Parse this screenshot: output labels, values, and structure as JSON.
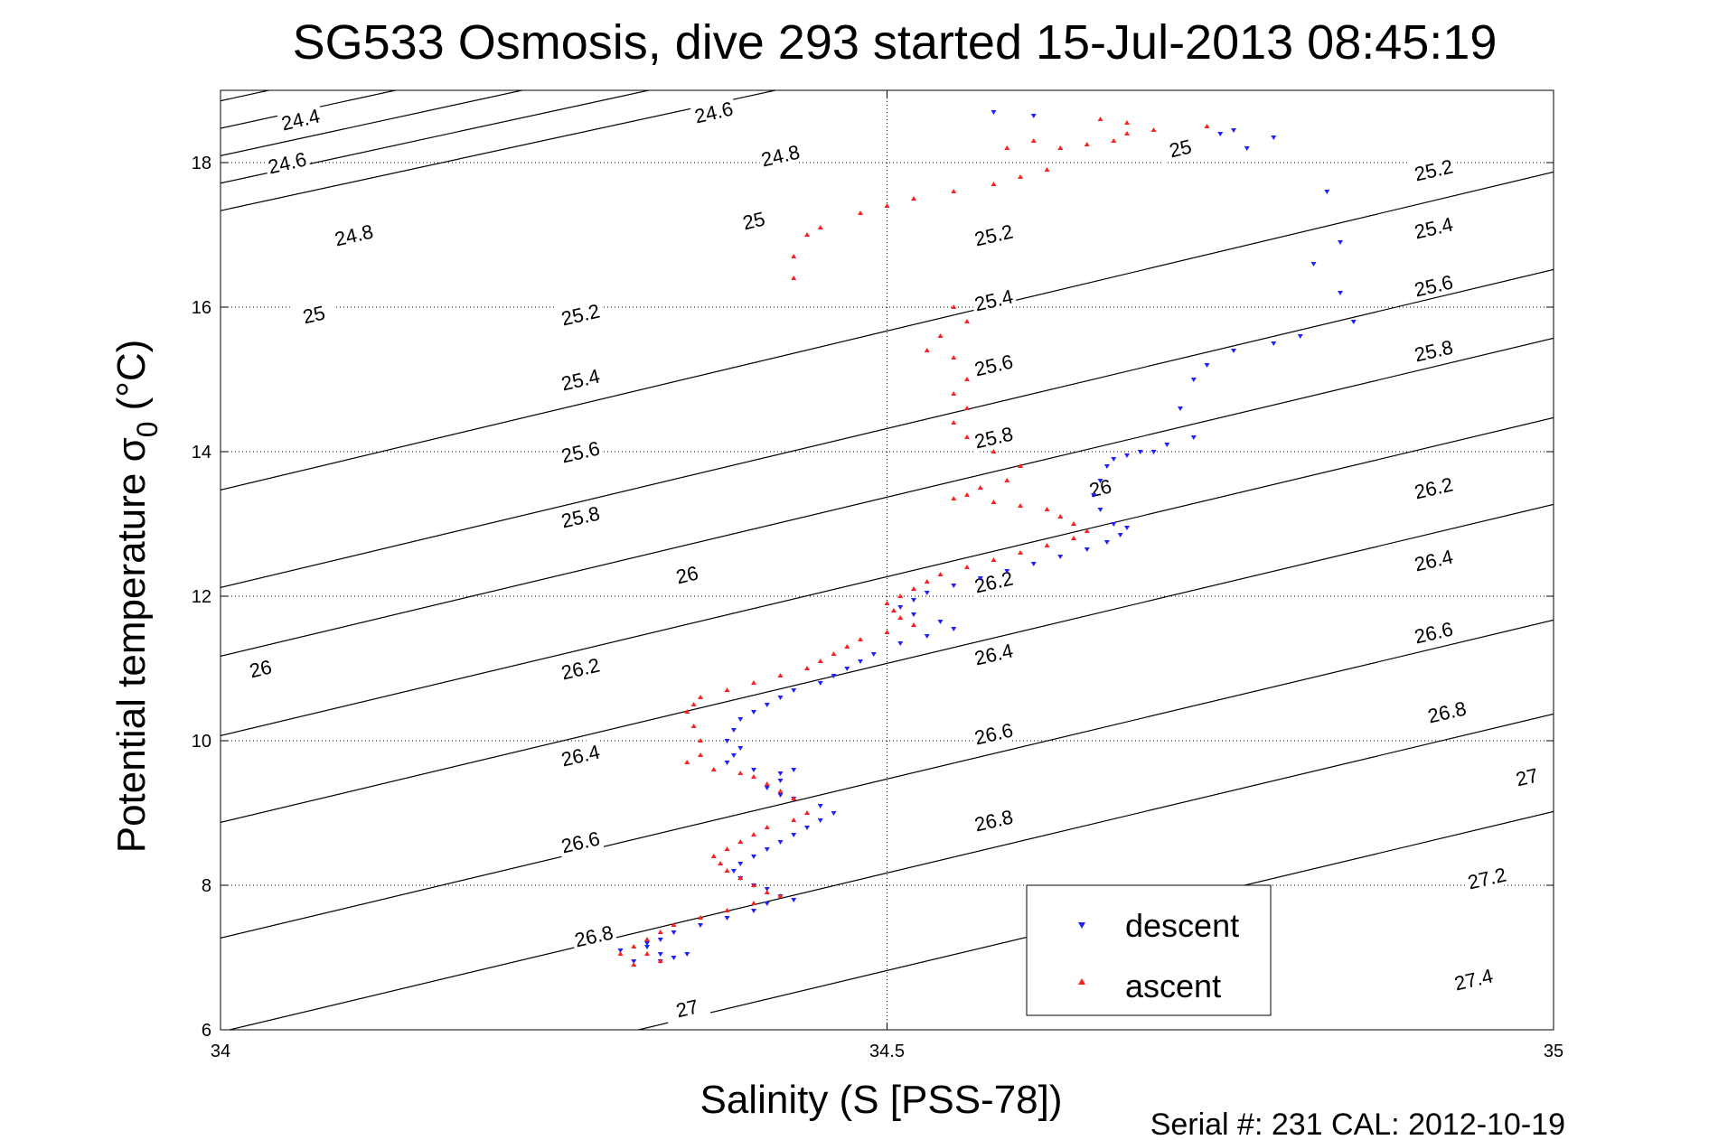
{
  "chart_data": {
    "type": "scatter",
    "title": "SG533 Osmosis, dive 293 started 15-Jul-2013 08:45:19",
    "xlabel": "Salinity (S [PSS-78])",
    "ylabel_main": "Potential temperature σ",
    "ylabel_sub": "0",
    "ylabel_unit": "(°C)",
    "xlim": [
      34,
      35
    ],
    "ylim": [
      6,
      19
    ],
    "xticks": [
      34,
      34.5,
      35
    ],
    "xtick_labels": [
      "34",
      "34.5",
      "35"
    ],
    "yticks": [
      6,
      8,
      10,
      12,
      14,
      16,
      18
    ],
    "ytick_labels": [
      "6",
      "8",
      "10",
      "12",
      "14",
      "16",
      "18"
    ],
    "grid": true,
    "legend_position": "bottom-center",
    "colors": {
      "descent": "#1f1fff",
      "ascent": "#ff1f1f",
      "contour": "#000000"
    },
    "isopycnals": [
      {
        "value": 24.4,
        "label": "24.4",
        "x0": 33.7,
        "y0": 18.795,
        "slope": 4.0
      },
      {
        "value": 24.6,
        "label": "24.6",
        "x0": 33.7,
        "y0": 18.415,
        "slope": 4.0
      },
      {
        "value": 24.8,
        "label": "24.8",
        "x0": 33.7,
        "y0": 18.035,
        "slope": 4.0
      },
      {
        "value": 25.0,
        "label": "25",
        "x0": 33.7,
        "y0": 17.655,
        "slope": 4.0
      },
      {
        "value": 25.2,
        "label": "25.2",
        "x0": 33.7,
        "y0": 17.275,
        "slope": 4.0
      },
      {
        "value": 25.4,
        "label": "25.4",
        "x0": 33.7,
        "y0": 16.895,
        "slope": 4.0
      },
      {
        "value": 25.6,
        "label": "25.6",
        "x0": 33.7,
        "y0": 16.515,
        "slope": 4.0
      },
      {
        "value": 25.8,
        "label": "25.8",
        "x0": 33.7,
        "y0": 16.135,
        "slope": 4.0
      },
      {
        "value": 26.0,
        "label": "26",
        "x0": 33.7,
        "y0": 12.15,
        "slope": 4.4
      },
      {
        "value": 26.2,
        "label": "26.2",
        "x0": 33.7,
        "y0": 10.8,
        "slope": 4.4
      },
      {
        "value": 26.4,
        "label": "26.4",
        "x0": 33.7,
        "y0": 9.85,
        "slope": 4.4
      },
      {
        "value": 26.6,
        "label": "26.6",
        "x0": 33.7,
        "y0": 8.75,
        "slope": 4.4
      },
      {
        "value": 26.8,
        "label": "26.8",
        "x0": 33.7,
        "y0": 7.55,
        "slope": 4.4
      },
      {
        "value": 27.0,
        "label": "27",
        "x0": 33.7,
        "y0": 5.95,
        "slope": 4.4
      },
      {
        "value": 27.2,
        "label": "27.2",
        "x0": 33.7,
        "y0": 4.65,
        "slope": 4.4
      },
      {
        "value": 27.4,
        "label": "27.4",
        "x0": 33.7,
        "y0": 3.3,
        "slope": 4.4
      }
    ],
    "contour_labels": [
      {
        "text": "24.4",
        "x": 34.06,
        "y": 18.6
      },
      {
        "text": "24.6",
        "x": 34.05,
        "y": 18.0
      },
      {
        "text": "24.8",
        "x": 34.1,
        "y": 17.0
      },
      {
        "text": "25",
        "x": 34.07,
        "y": 15.9
      },
      {
        "text": "26",
        "x": 34.03,
        "y": 11.0
      },
      {
        "text": "24.6",
        "x": 34.37,
        "y": 18.7
      },
      {
        "text": "24.8",
        "x": 34.42,
        "y": 18.1
      },
      {
        "text": "25",
        "x": 34.4,
        "y": 17.2
      },
      {
        "text": "25.2",
        "x": 34.27,
        "y": 15.9
      },
      {
        "text": "25.4",
        "x": 34.27,
        "y": 15.0
      },
      {
        "text": "25.6",
        "x": 34.27,
        "y": 14.0
      },
      {
        "text": "25.8",
        "x": 34.27,
        "y": 13.1
      },
      {
        "text": "26",
        "x": 34.35,
        "y": 12.3
      },
      {
        "text": "26.2",
        "x": 34.27,
        "y": 11.0
      },
      {
        "text": "26.4",
        "x": 34.27,
        "y": 9.8
      },
      {
        "text": "26.6",
        "x": 34.27,
        "y": 8.6
      },
      {
        "text": "26.8",
        "x": 34.28,
        "y": 7.3
      },
      {
        "text": "27",
        "x": 34.35,
        "y": 6.3
      },
      {
        "text": "25",
        "x": 34.72,
        "y": 18.2
      },
      {
        "text": "25.2",
        "x": 34.58,
        "y": 17.0
      },
      {
        "text": "25.4",
        "x": 34.58,
        "y": 16.1
      },
      {
        "text": "25.6",
        "x": 34.58,
        "y": 15.2
      },
      {
        "text": "25.8",
        "x": 34.58,
        "y": 14.2
      },
      {
        "text": "26",
        "x": 34.66,
        "y": 13.5
      },
      {
        "text": "26.2",
        "x": 34.58,
        "y": 12.2
      },
      {
        "text": "26.4",
        "x": 34.58,
        "y": 11.2
      },
      {
        "text": "26.6",
        "x": 34.58,
        "y": 10.1
      },
      {
        "text": "26.8",
        "x": 34.58,
        "y": 8.9
      },
      {
        "text": "25.2",
        "x": 34.91,
        "y": 17.9
      },
      {
        "text": "25.4",
        "x": 34.91,
        "y": 17.1
      },
      {
        "text": "25.6",
        "x": 34.91,
        "y": 16.3
      },
      {
        "text": "25.8",
        "x": 34.91,
        "y": 15.4
      },
      {
        "text": "26.2",
        "x": 34.91,
        "y": 13.5
      },
      {
        "text": "26.4",
        "x": 34.91,
        "y": 12.5
      },
      {
        "text": "26.6",
        "x": 34.91,
        "y": 11.5
      },
      {
        "text": "26.8",
        "x": 34.92,
        "y": 10.4
      },
      {
        "text": "27",
        "x": 34.98,
        "y": 9.5
      },
      {
        "text": "27.2",
        "x": 34.95,
        "y": 8.1
      },
      {
        "text": "27.4",
        "x": 34.94,
        "y": 6.7
      }
    ],
    "series": [
      {
        "name": "descent",
        "marker": "triangle-down",
        "points": [
          [
            34.58,
            18.7
          ],
          [
            34.61,
            18.65
          ],
          [
            34.75,
            18.4
          ],
          [
            34.76,
            18.45
          ],
          [
            34.79,
            18.35
          ],
          [
            34.77,
            18.2
          ],
          [
            34.83,
            17.6
          ],
          [
            34.84,
            16.9
          ],
          [
            34.82,
            16.6
          ],
          [
            34.84,
            16.2
          ],
          [
            34.85,
            15.8
          ],
          [
            34.81,
            15.6
          ],
          [
            34.79,
            15.5
          ],
          [
            34.76,
            15.4
          ],
          [
            34.74,
            15.2
          ],
          [
            34.73,
            15.0
          ],
          [
            34.72,
            14.6
          ],
          [
            34.73,
            14.2
          ],
          [
            34.71,
            14.1
          ],
          [
            34.7,
            14.0
          ],
          [
            34.69,
            14.0
          ],
          [
            34.68,
            13.95
          ],
          [
            34.67,
            13.9
          ],
          [
            34.665,
            13.8
          ],
          [
            34.66,
            13.6
          ],
          [
            34.655,
            13.4
          ],
          [
            34.66,
            13.2
          ],
          [
            34.67,
            13.0
          ],
          [
            34.68,
            12.95
          ],
          [
            34.675,
            12.85
          ],
          [
            34.665,
            12.75
          ],
          [
            34.65,
            12.65
          ],
          [
            34.63,
            12.55
          ],
          [
            34.61,
            12.45
          ],
          [
            34.59,
            12.35
          ],
          [
            34.57,
            12.25
          ],
          [
            34.55,
            12.15
          ],
          [
            34.53,
            12.05
          ],
          [
            34.52,
            11.95
          ],
          [
            34.51,
            11.85
          ],
          [
            34.52,
            11.75
          ],
          [
            34.54,
            11.65
          ],
          [
            34.55,
            11.55
          ],
          [
            34.53,
            11.45
          ],
          [
            34.51,
            11.35
          ],
          [
            34.49,
            11.2
          ],
          [
            34.48,
            11.1
          ],
          [
            34.47,
            11.0
          ],
          [
            34.46,
            10.9
          ],
          [
            34.45,
            10.8
          ],
          [
            34.43,
            10.7
          ],
          [
            34.42,
            10.6
          ],
          [
            34.41,
            10.5
          ],
          [
            34.4,
            10.4
          ],
          [
            34.39,
            10.3
          ],
          [
            34.385,
            10.15
          ],
          [
            34.38,
            10.0
          ],
          [
            34.39,
            9.9
          ],
          [
            34.385,
            9.8
          ],
          [
            34.38,
            9.7
          ],
          [
            34.4,
            9.6
          ],
          [
            34.42,
            9.55
          ],
          [
            34.43,
            9.6
          ],
          [
            34.42,
            9.45
          ],
          [
            34.41,
            9.35
          ],
          [
            34.42,
            9.25
          ],
          [
            34.43,
            9.2
          ],
          [
            34.45,
            9.1
          ],
          [
            34.46,
            9.0
          ],
          [
            34.45,
            8.9
          ],
          [
            34.44,
            8.8
          ],
          [
            34.43,
            8.7
          ],
          [
            34.42,
            8.6
          ],
          [
            34.41,
            8.5
          ],
          [
            34.4,
            8.4
          ],
          [
            34.39,
            8.3
          ],
          [
            34.385,
            8.2
          ],
          [
            34.39,
            8.1
          ],
          [
            34.4,
            8.0
          ],
          [
            34.41,
            7.95
          ],
          [
            34.42,
            7.85
          ],
          [
            34.43,
            7.8
          ],
          [
            34.41,
            7.75
          ],
          [
            34.4,
            7.65
          ],
          [
            34.38,
            7.55
          ],
          [
            34.36,
            7.45
          ],
          [
            34.34,
            7.35
          ],
          [
            34.33,
            7.25
          ],
          [
            34.32,
            7.15
          ],
          [
            34.33,
            7.05
          ],
          [
            34.34,
            7.0
          ],
          [
            34.35,
            7.05
          ],
          [
            34.33,
            6.95
          ],
          [
            34.31,
            6.95
          ],
          [
            34.3,
            7.1
          ],
          [
            34.32,
            7.2
          ]
        ]
      },
      {
        "name": "ascent",
        "marker": "triangle-up",
        "points": [
          [
            34.43,
            16.4
          ],
          [
            34.43,
            16.7
          ],
          [
            34.44,
            17.0
          ],
          [
            34.45,
            17.1
          ],
          [
            34.48,
            17.3
          ],
          [
            34.5,
            17.4
          ],
          [
            34.52,
            17.5
          ],
          [
            34.55,
            17.6
          ],
          [
            34.58,
            17.7
          ],
          [
            34.6,
            17.8
          ],
          [
            34.62,
            17.9
          ],
          [
            34.59,
            18.2
          ],
          [
            34.61,
            18.3
          ],
          [
            34.63,
            18.2
          ],
          [
            34.65,
            18.25
          ],
          [
            34.67,
            18.3
          ],
          [
            34.68,
            18.4
          ],
          [
            34.66,
            18.6
          ],
          [
            34.68,
            18.55
          ],
          [
            34.7,
            18.45
          ],
          [
            34.74,
            18.5
          ],
          [
            34.55,
            16.0
          ],
          [
            34.56,
            15.8
          ],
          [
            34.54,
            15.6
          ],
          [
            34.53,
            15.4
          ],
          [
            34.55,
            15.3
          ],
          [
            34.56,
            15.0
          ],
          [
            34.55,
            14.8
          ],
          [
            34.56,
            14.6
          ],
          [
            34.55,
            14.4
          ],
          [
            34.56,
            14.2
          ],
          [
            34.58,
            14.0
          ],
          [
            34.6,
            13.8
          ],
          [
            34.59,
            13.6
          ],
          [
            34.57,
            13.5
          ],
          [
            34.56,
            13.4
          ],
          [
            34.55,
            13.35
          ],
          [
            34.58,
            13.3
          ],
          [
            34.6,
            13.25
          ],
          [
            34.62,
            13.2
          ],
          [
            34.63,
            13.1
          ],
          [
            34.64,
            13.0
          ],
          [
            34.65,
            12.9
          ],
          [
            34.64,
            12.8
          ],
          [
            34.62,
            12.7
          ],
          [
            34.6,
            12.6
          ],
          [
            34.58,
            12.5
          ],
          [
            34.56,
            12.4
          ],
          [
            34.54,
            12.3
          ],
          [
            34.53,
            12.2
          ],
          [
            34.52,
            12.1
          ],
          [
            34.51,
            12.0
          ],
          [
            34.5,
            11.9
          ],
          [
            34.505,
            11.8
          ],
          [
            34.51,
            11.7
          ],
          [
            34.52,
            11.6
          ],
          [
            34.5,
            11.5
          ],
          [
            34.48,
            11.4
          ],
          [
            34.47,
            11.3
          ],
          [
            34.46,
            11.2
          ],
          [
            34.45,
            11.1
          ],
          [
            34.44,
            11.0
          ],
          [
            34.42,
            10.9
          ],
          [
            34.4,
            10.8
          ],
          [
            34.38,
            10.7
          ],
          [
            34.36,
            10.6
          ],
          [
            34.355,
            10.5
          ],
          [
            34.35,
            10.4
          ],
          [
            34.355,
            10.2
          ],
          [
            34.36,
            10.0
          ],
          [
            34.36,
            9.8
          ],
          [
            34.35,
            9.7
          ],
          [
            34.37,
            9.6
          ],
          [
            34.39,
            9.55
          ],
          [
            34.4,
            9.5
          ],
          [
            34.41,
            9.4
          ],
          [
            34.42,
            9.3
          ],
          [
            34.43,
            9.2
          ],
          [
            34.44,
            9.0
          ],
          [
            34.43,
            8.9
          ],
          [
            34.41,
            8.8
          ],
          [
            34.4,
            8.7
          ],
          [
            34.39,
            8.6
          ],
          [
            34.38,
            8.5
          ],
          [
            34.37,
            8.4
          ],
          [
            34.375,
            8.3
          ],
          [
            34.38,
            8.2
          ],
          [
            34.39,
            8.1
          ],
          [
            34.4,
            8.0
          ],
          [
            34.41,
            7.9
          ],
          [
            34.42,
            7.85
          ],
          [
            34.4,
            7.75
          ],
          [
            34.38,
            7.65
          ],
          [
            34.36,
            7.55
          ],
          [
            34.34,
            7.45
          ],
          [
            34.33,
            7.35
          ],
          [
            34.32,
            7.25
          ],
          [
            34.31,
            7.15
          ],
          [
            34.32,
            7.05
          ],
          [
            34.33,
            6.95
          ],
          [
            34.31,
            6.9
          ],
          [
            34.3,
            7.05
          ]
        ]
      }
    ]
  },
  "legend": {
    "items": [
      "descent",
      "ascent"
    ]
  },
  "footer": {
    "text": "Serial #: 231  CAL: 2012-10-19"
  }
}
